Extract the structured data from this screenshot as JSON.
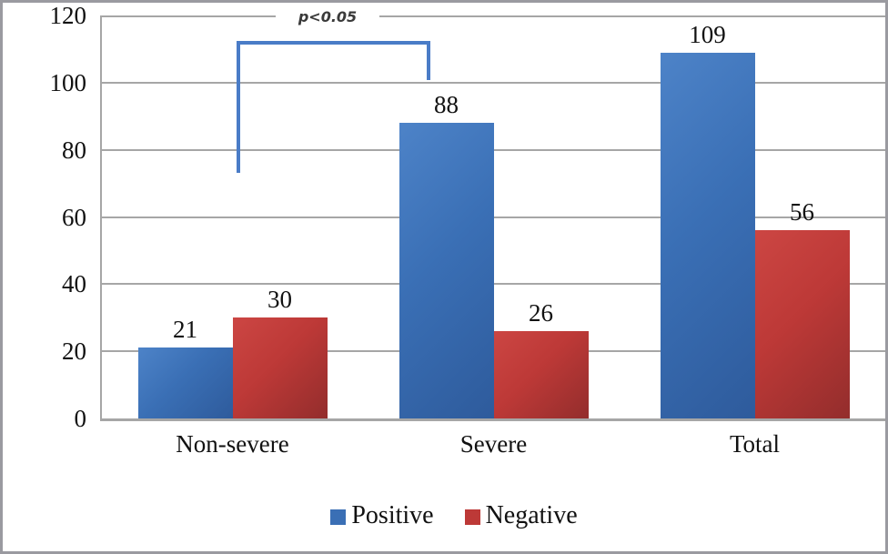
{
  "chart_data": {
    "type": "bar",
    "categories": [
      "Non-severe",
      "Severe",
      "Total"
    ],
    "series": [
      {
        "name": "Positive",
        "values": [
          21,
          88,
          109
        ],
        "color": "#3a6fb5",
        "color_light": "#4d83c8",
        "color_dark": "#2e5b9c"
      },
      {
        "name": "Negative",
        "values": [
          30,
          26,
          56
        ],
        "color": "#bd3937",
        "color_light": "#cc4643",
        "color_dark": "#932d2c"
      }
    ],
    "title": "",
    "xlabel": "",
    "ylabel": "",
    "y_ticks": [
      0,
      20,
      40,
      60,
      80,
      100,
      120
    ],
    "ylim": [
      0,
      120
    ],
    "grid": "horizontal-only",
    "legend_position": "bottom",
    "annotation": {
      "text": "p<0.05",
      "between": [
        "Non-severe",
        "Severe"
      ],
      "bracket_color": "#4a7cc7"
    },
    "gridline_color": "#a6a6a6",
    "frame_color": "#9a9aa0"
  }
}
